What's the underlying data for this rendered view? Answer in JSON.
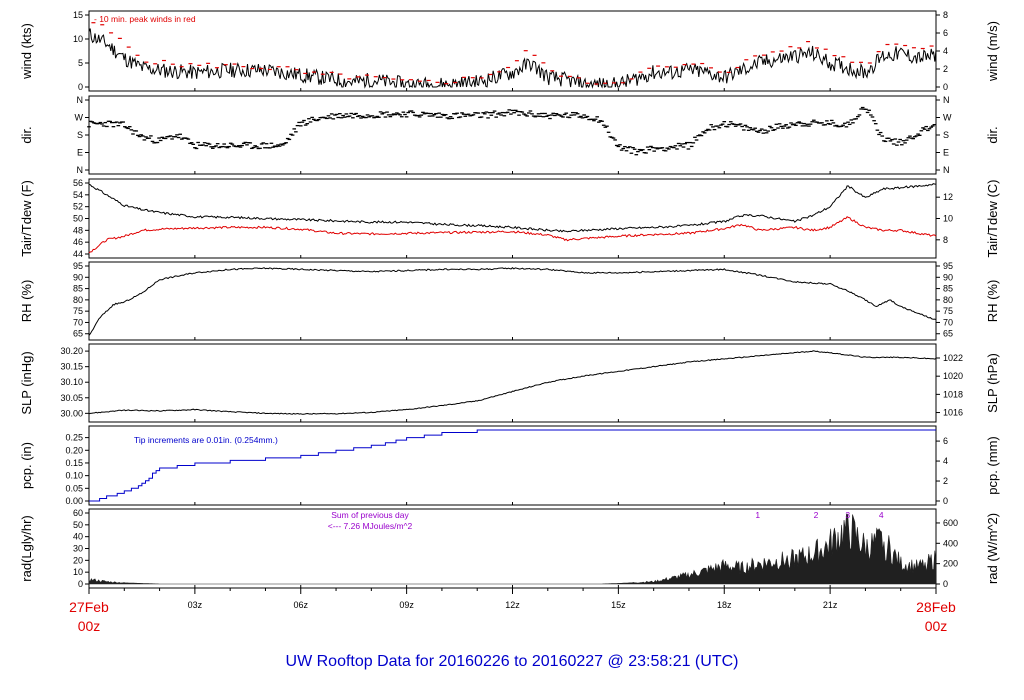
{
  "footer": {
    "title": "UW Rooftop Data for 20160226  to  20160227 @ 23:58:21  (UTC)"
  },
  "time_axis": {
    "start": {
      "date": "27Feb",
      "hour": "00z"
    },
    "end": {
      "date": "28Feb",
      "hour": "00z"
    },
    "ticks": [
      "03z",
      "06z",
      "09z",
      "12z",
      "15z",
      "18z",
      "21z"
    ]
  },
  "colors": {
    "trace": "#000000",
    "peak": "#e00000",
    "dewpoint": "#e00000",
    "precip": "#0000cc",
    "radiation": "#202020",
    "annotation_purple": "#9900cc",
    "title_blue": "#0000cc"
  },
  "chart_data": [
    {
      "type": "line",
      "ylabel": "wind (kts)",
      "ylabel_right": "wind (m/s)",
      "ylim": [
        0,
        15
      ],
      "yticks": [
        "0",
        "5",
        "10",
        "15"
      ],
      "ylim_right": [
        0,
        8
      ],
      "yticks_right": [
        "0",
        "2",
        "4",
        "6",
        "8"
      ],
      "annotation": "-  10 min. peak winds in red",
      "x_hours": [
        0,
        0.5,
        1,
        1.5,
        2,
        3,
        4,
        5,
        5.5,
        6,
        6.5,
        7,
        7.5,
        8,
        9,
        10,
        11,
        11.5,
        12,
        12.5,
        13,
        13.5,
        14,
        15,
        16,
        16.5,
        17,
        17.5,
        18,
        18.5,
        19,
        20,
        20.5,
        21,
        21.5,
        22,
        22.5,
        23,
        23.5,
        24
      ],
      "series": [
        {
          "values": [
            11,
            9,
            6,
            4,
            3.5,
            3,
            3.5,
            3.5,
            3,
            2.5,
            2,
            1.5,
            1,
            1.5,
            0.5,
            0.5,
            1,
            2,
            3,
            5,
            2,
            1.5,
            0.5,
            0.5,
            3,
            3,
            3.5,
            3,
            2,
            3.5,
            5,
            6.5,
            7,
            5,
            4,
            3,
            6.5,
            7,
            6,
            6.5
          ]
        },
        {
          "values": [
            14,
            12,
            9,
            6,
            5,
            4.5,
            4.5,
            4,
            4,
            3,
            2.5,
            2.5,
            2,
            2,
            1,
            1,
            2,
            3,
            4.5,
            8,
            3.5,
            2.5,
            1,
            1,
            4,
            4,
            4.5,
            4.5,
            3,
            5,
            6.5,
            8.5,
            9,
            7,
            6,
            4.5,
            8.5,
            9.5,
            8,
            8.5
          ]
        }
      ]
    },
    {
      "type": "scatter",
      "ylabel": "dir.",
      "ylabel_right": "dir.",
      "yticks": [
        "N",
        "E",
        "S",
        "W",
        "N"
      ],
      "yticks_right": [
        "N",
        "E",
        "S",
        "W",
        "N"
      ],
      "x_hours": [
        0,
        0.5,
        1,
        1.5,
        2,
        2.5,
        3,
        4,
        5,
        5.5,
        6,
        6.5,
        7,
        8,
        9,
        10,
        11,
        12,
        13,
        14,
        14.5,
        15,
        15.5,
        16,
        17,
        17.5,
        18,
        18.5,
        19,
        20,
        21,
        21.5,
        22,
        22.5,
        23,
        24
      ],
      "series": [
        {
          "values": [
            235,
            240,
            230,
            170,
            150,
            180,
            125,
            125,
            125,
            125,
            240,
            265,
            280,
            285,
            290,
            280,
            280,
            295,
            280,
            280,
            260,
            120,
            95,
            110,
            125,
            210,
            240,
            220,
            200,
            240,
            240,
            230,
            330,
            160,
            140,
            240
          ]
        }
      ]
    },
    {
      "type": "line",
      "ylabel": "Tair/Tdew (F)",
      "ylabel_right": "Tair/Tdew (C)",
      "ylim": [
        44,
        56
      ],
      "yticks": [
        "44",
        "46",
        "48",
        "50",
        "52",
        "54",
        "56"
      ],
      "ylim_right": [
        6.67,
        13.33
      ],
      "yticks_right": [
        "8",
        "10",
        "12"
      ],
      "x_hours": [
        0,
        0.5,
        1,
        1.5,
        2,
        3,
        4,
        5,
        6,
        7,
        8,
        9,
        10,
        11,
        12,
        13,
        13.5,
        14,
        15,
        16,
        17,
        18,
        18.5,
        19,
        20,
        20.5,
        21,
        21.5,
        22,
        22.5,
        23,
        24
      ],
      "series": [
        {
          "name": "Tair",
          "values": [
            55.8,
            54,
            52.2,
            51.5,
            51,
            50.3,
            50.2,
            50,
            49.8,
            49.6,
            49.4,
            49.4,
            49,
            48.8,
            48.5,
            48,
            47.8,
            48,
            48.3,
            48.5,
            48.8,
            49.5,
            50.5,
            50.5,
            49.5,
            50.5,
            52,
            55.5,
            53.5,
            55,
            55.2,
            55.8
          ]
        },
        {
          "name": "Tdew",
          "values": [
            44.2,
            46.4,
            47,
            48,
            48.2,
            48.4,
            48.5,
            48.5,
            48.2,
            47.5,
            47.4,
            47.5,
            47.6,
            47.7,
            47.8,
            47.2,
            46.4,
            46.6,
            47,
            47.3,
            47.5,
            48.3,
            49,
            48,
            48.5,
            48,
            48.5,
            50.2,
            48.5,
            48,
            48,
            47
          ]
        }
      ]
    },
    {
      "type": "line",
      "ylabel": "RH (%)",
      "ylabel_right": "RH (%)",
      "ylim": [
        64,
        95
      ],
      "yticks": [
        "65",
        "70",
        "75",
        "80",
        "85",
        "90",
        "95"
      ],
      "yticks_right": [
        "65",
        "70",
        "75",
        "80",
        "85",
        "90",
        "95"
      ],
      "x_hours": [
        0,
        0.3,
        0.7,
        1,
        1.5,
        2,
        3,
        4,
        5,
        6,
        7,
        8,
        9,
        10,
        11,
        12,
        13,
        14,
        15,
        16,
        17,
        18,
        19,
        20,
        21,
        21.5,
        22,
        22.3,
        22.7,
        23,
        23.5,
        24
      ],
      "series": [
        {
          "values": [
            64,
            72,
            78,
            79,
            83,
            89,
            92,
            93.5,
            94,
            93.5,
            93,
            92.5,
            93,
            93.5,
            93.5,
            94,
            93.5,
            92,
            92,
            92.5,
            93,
            93.5,
            91,
            88,
            87,
            84,
            80,
            77,
            80,
            77,
            74,
            71
          ]
        }
      ]
    },
    {
      "type": "line",
      "ylabel": "SLP (inHg)",
      "ylabel_right": "SLP (hPa)",
      "ylim": [
        29.985,
        30.21
      ],
      "yticks": [
        "30.00",
        "30.05",
        "30.10",
        "30.15",
        "30.20"
      ],
      "yticks_right": [
        "1016",
        "1018",
        "1020",
        "1022"
      ],
      "x_hours": [
        0,
        1,
        2,
        3,
        4,
        5,
        6,
        7,
        8,
        9,
        10,
        11,
        12,
        13,
        14,
        15,
        16,
        17,
        18,
        19,
        20,
        20.5,
        21,
        22,
        23,
        24
      ],
      "series": [
        {
          "values": [
            30.0,
            30.01,
            30.008,
            30.012,
            30.005,
            30.0,
            29.998,
            29.999,
            30.003,
            30.012,
            30.025,
            30.04,
            30.07,
            30.1,
            30.12,
            30.135,
            30.15,
            30.165,
            30.175,
            30.185,
            30.195,
            30.2,
            30.195,
            30.18,
            30.18,
            30.175
          ]
        }
      ]
    },
    {
      "type": "line",
      "ylabel": "pcp. (in)",
      "ylabel_right": "pcp. (mm)",
      "ylim": [
        0,
        0.28
      ],
      "yticks": [
        "0.00",
        "0.05",
        "0.10",
        "0.15",
        "0.20",
        "0.25"
      ],
      "yticks_right": [
        "0",
        "2",
        "4",
        "6"
      ],
      "annotation": "Tip increments are 0.01in. (0.254mm.)",
      "x_hours": [
        0,
        0.5,
        1,
        1.5,
        1.8,
        2,
        3,
        4,
        5,
        6,
        7,
        8,
        9,
        10,
        11,
        12,
        24
      ],
      "series": [
        {
          "values": [
            0.0,
            0.02,
            0.04,
            0.07,
            0.11,
            0.13,
            0.15,
            0.16,
            0.17,
            0.18,
            0.2,
            0.22,
            0.25,
            0.27,
            0.28,
            0.28,
            0.28
          ]
        }
      ]
    },
    {
      "type": "area",
      "ylabel": "rad(Lgly/hr)",
      "ylabel_right": "rad (W/m^2)",
      "ylim": [
        0,
        60
      ],
      "yticks": [
        "0",
        "10",
        "20",
        "30",
        "40",
        "50",
        "60"
      ],
      "yticks_right": [
        "0",
        "200",
        "400",
        "600"
      ],
      "annotation": {
        "line1": "Sum of previous day",
        "line2": "<--- 7.26 MJoules/m^2",
        "markers": [
          "1",
          "2",
          "3",
          "4"
        ]
      },
      "x_hours": [
        0,
        0.5,
        1,
        2,
        14.5,
        15,
        16,
        16.5,
        17,
        17.5,
        18,
        18.5,
        19,
        19.5,
        20,
        20.5,
        21,
        21.5,
        22,
        22.5,
        23,
        23.5,
        24
      ],
      "series": [
        {
          "values": [
            4,
            2,
            1,
            0,
            0,
            0.5,
            2,
            5,
            8,
            12,
            16,
            14,
            18,
            20,
            22,
            26,
            35,
            50,
            32,
            38,
            18,
            15,
            22
          ]
        }
      ]
    }
  ]
}
